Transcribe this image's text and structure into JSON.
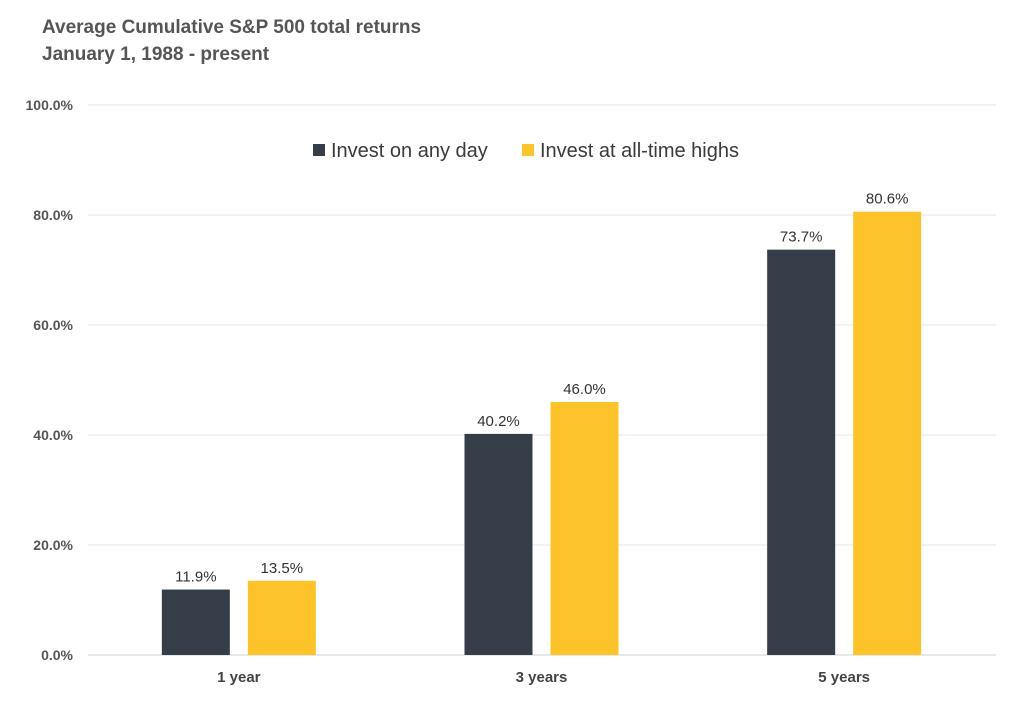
{
  "chart_data": {
    "type": "bar",
    "title": "Average Cumulative S&P 500 total returns",
    "subtitle": "January 1, 1988 - present",
    "categories": [
      "1 year",
      "3 years",
      "5 years"
    ],
    "series": [
      {
        "name": "Invest on any day",
        "color": "#343d48",
        "values": [
          11.9,
          40.2,
          73.7
        ],
        "labels": [
          "11.9%",
          "40.2%",
          "73.7%"
        ]
      },
      {
        "name": "Invest at all-time highs",
        "color": "#fcc42a",
        "values": [
          13.5,
          46.0,
          80.6
        ],
        "labels": [
          "13.5%",
          "46.0%",
          "80.6%"
        ]
      }
    ],
    "ylim": [
      0,
      100
    ],
    "yticks": [
      0,
      20,
      40,
      60,
      80,
      100
    ],
    "ytick_labels": [
      "0.0%",
      "20.0%",
      "40.0%",
      "60.0%",
      "80.0%",
      "100.0%"
    ],
    "grid": true,
    "legend_position": "top-center"
  }
}
